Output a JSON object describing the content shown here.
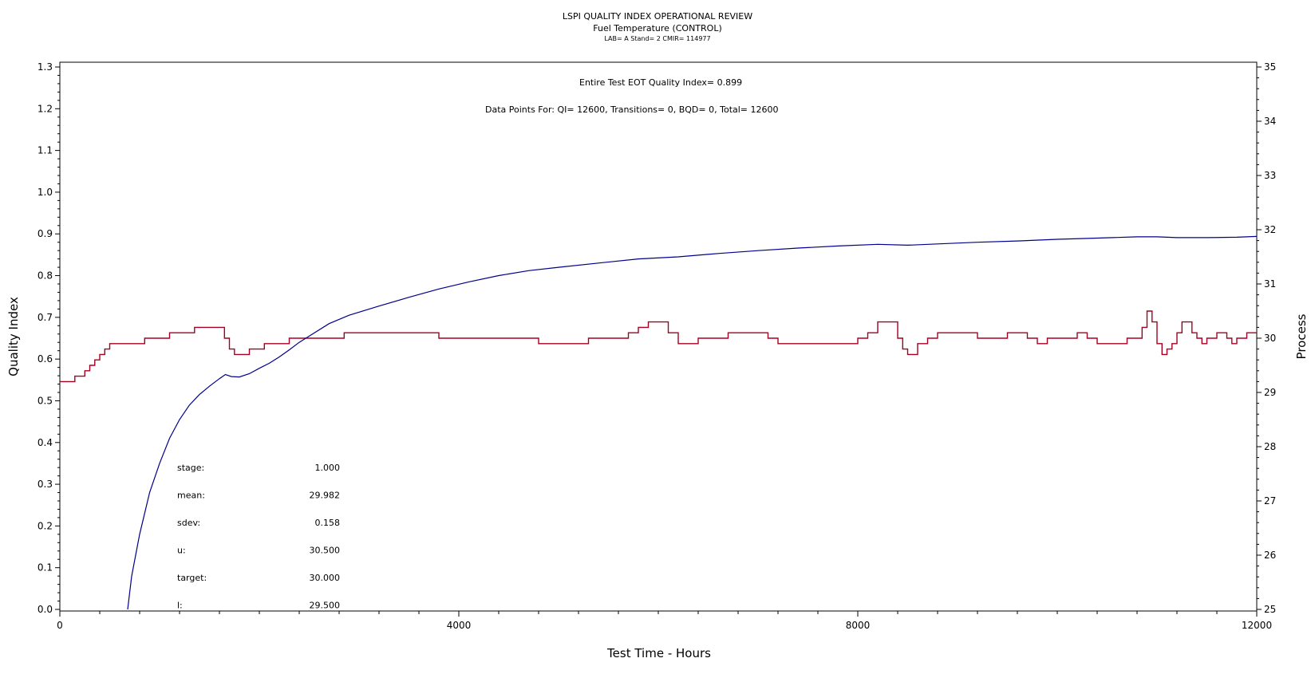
{
  "chart_data": {
    "type": "line",
    "title": "LSPI QUALITY INDEX OPERATIONAL REVIEW",
    "subtitle": "Fuel Temperature (CONTROL)",
    "subsubtitle": "LAB= A Stand= 2 CMIR= 114977",
    "xlabel": "Test Time - Hours",
    "ylabel_left": "Quality Index",
    "ylabel_right": "Process",
    "xlim": [
      0,
      12000
    ],
    "ylim_left": [
      0.0,
      1.3
    ],
    "ylim_right": [
      25,
      35
    ],
    "x_ticks": [
      0,
      4000,
      8000,
      12000
    ],
    "y_left_ticks": [
      0.0,
      0.1,
      0.2,
      0.3,
      0.4,
      0.5,
      0.6,
      0.7,
      0.8,
      0.9,
      1.0,
      1.1,
      1.2,
      1.3
    ],
    "y_left_tick_labels": [
      "0.0",
      "0.1",
      "0.2",
      "0.3",
      "0.4",
      "0.5",
      "0.6",
      "0.7",
      "0.8",
      "0.9",
      "1.0",
      "1.1",
      "1.2",
      "1.3"
    ],
    "y_right_ticks": [
      25,
      26,
      27,
      28,
      29,
      30,
      31,
      32,
      33,
      34,
      35
    ],
    "annotations": {
      "eot": "Entire Test EOT Quality Index=   0.899",
      "points": "Data Points For: QI=  12600, Transitions=      0, BQD=      0, Total=  12600"
    },
    "stats": [
      {
        "label": "stage:",
        "value": "1.000"
      },
      {
        "label": "mean:",
        "value": "29.982"
      },
      {
        "label": "sdev:",
        "value": "0.158"
      },
      {
        "label": "u:",
        "value": "30.500"
      },
      {
        "label": "target:",
        "value": "30.000"
      },
      {
        "label": "l:",
        "value": "29.500"
      }
    ],
    "grid": false,
    "series": [
      {
        "axis": "left",
        "color": "#00008b",
        "points": [
          [
            680,
            0.0
          ],
          [
            720,
            0.08
          ],
          [
            800,
            0.18
          ],
          [
            900,
            0.28
          ],
          [
            1000,
            0.35
          ],
          [
            1100,
            0.41
          ],
          [
            1200,
            0.455
          ],
          [
            1300,
            0.49
          ],
          [
            1400,
            0.515
          ],
          [
            1500,
            0.535
          ],
          [
            1600,
            0.553
          ],
          [
            1660,
            0.563
          ],
          [
            1720,
            0.558
          ],
          [
            1800,
            0.557
          ],
          [
            1900,
            0.565
          ],
          [
            2000,
            0.578
          ],
          [
            2100,
            0.59
          ],
          [
            2200,
            0.605
          ],
          [
            2300,
            0.622
          ],
          [
            2400,
            0.64
          ],
          [
            2500,
            0.655
          ],
          [
            2700,
            0.685
          ],
          [
            2900,
            0.705
          ],
          [
            3200,
            0.727
          ],
          [
            3500,
            0.748
          ],
          [
            3800,
            0.768
          ],
          [
            4100,
            0.785
          ],
          [
            4400,
            0.8
          ],
          [
            4700,
            0.812
          ],
          [
            5000,
            0.82
          ],
          [
            5400,
            0.83
          ],
          [
            5800,
            0.84
          ],
          [
            6200,
            0.845
          ],
          [
            6600,
            0.853
          ],
          [
            7000,
            0.86
          ],
          [
            7400,
            0.866
          ],
          [
            7800,
            0.871
          ],
          [
            8200,
            0.875
          ],
          [
            8500,
            0.873
          ],
          [
            8800,
            0.876
          ],
          [
            9200,
            0.88
          ],
          [
            9600,
            0.883
          ],
          [
            10000,
            0.887
          ],
          [
            10400,
            0.89
          ],
          [
            10800,
            0.893
          ],
          [
            11000,
            0.893
          ],
          [
            11200,
            0.891
          ],
          [
            11500,
            0.891
          ],
          [
            11800,
            0.892
          ],
          [
            12000,
            0.894
          ]
        ]
      },
      {
        "axis": "right",
        "color": "#a50021",
        "points": [
          [
            0,
            29.2
          ],
          [
            100,
            29.2
          ],
          [
            150,
            29.3
          ],
          [
            200,
            29.3
          ],
          [
            250,
            29.4
          ],
          [
            300,
            29.5
          ],
          [
            350,
            29.6
          ],
          [
            400,
            29.7
          ],
          [
            450,
            29.8
          ],
          [
            500,
            29.9
          ],
          [
            550,
            29.9
          ],
          [
            600,
            29.9
          ],
          [
            700,
            29.9
          ],
          [
            800,
            29.9
          ],
          [
            850,
            30.0
          ],
          [
            1000,
            30.0
          ],
          [
            1100,
            30.1
          ],
          [
            1300,
            30.1
          ],
          [
            1350,
            30.2
          ],
          [
            1600,
            30.2
          ],
          [
            1650,
            30.0
          ],
          [
            1700,
            29.8
          ],
          [
            1750,
            29.7
          ],
          [
            1850,
            29.7
          ],
          [
            1900,
            29.8
          ],
          [
            2000,
            29.8
          ],
          [
            2050,
            29.9
          ],
          [
            2200,
            29.9
          ],
          [
            2300,
            30.0
          ],
          [
            2800,
            30.0
          ],
          [
            2850,
            30.1
          ],
          [
            3700,
            30.1
          ],
          [
            3800,
            30.0
          ],
          [
            4300,
            30.0
          ],
          [
            4500,
            30.0
          ],
          [
            4700,
            30.0
          ],
          [
            4800,
            29.9
          ],
          [
            4900,
            29.9
          ],
          [
            5000,
            29.9
          ],
          [
            5200,
            29.9
          ],
          [
            5300,
            30.0
          ],
          [
            5500,
            30.0
          ],
          [
            5600,
            30.0
          ],
          [
            5700,
            30.1
          ],
          [
            5800,
            30.2
          ],
          [
            5900,
            30.3
          ],
          [
            6000,
            30.3
          ],
          [
            6100,
            30.1
          ],
          [
            6200,
            29.9
          ],
          [
            6300,
            29.9
          ],
          [
            6400,
            30.0
          ],
          [
            6600,
            30.0
          ],
          [
            6700,
            30.1
          ],
          [
            6900,
            30.1
          ],
          [
            7000,
            30.1
          ],
          [
            7100,
            30.0
          ],
          [
            7200,
            29.9
          ],
          [
            7300,
            29.9
          ],
          [
            7500,
            29.9
          ],
          [
            7800,
            29.9
          ],
          [
            7900,
            29.9
          ],
          [
            8000,
            30.0
          ],
          [
            8100,
            30.1
          ],
          [
            8200,
            30.3
          ],
          [
            8300,
            30.3
          ],
          [
            8400,
            30.0
          ],
          [
            8450,
            29.8
          ],
          [
            8500,
            29.7
          ],
          [
            8600,
            29.9
          ],
          [
            8700,
            30.0
          ],
          [
            8800,
            30.1
          ],
          [
            9000,
            30.1
          ],
          [
            9100,
            30.1
          ],
          [
            9200,
            30.0
          ],
          [
            9300,
            30.0
          ],
          [
            9400,
            30.0
          ],
          [
            9500,
            30.1
          ],
          [
            9600,
            30.1
          ],
          [
            9700,
            30.0
          ],
          [
            9800,
            29.9
          ],
          [
            9900,
            30.0
          ],
          [
            10000,
            30.0
          ],
          [
            10100,
            30.0
          ],
          [
            10200,
            30.1
          ],
          [
            10300,
            30.0
          ],
          [
            10400,
            29.9
          ],
          [
            10600,
            29.9
          ],
          [
            10700,
            30.0
          ],
          [
            10800,
            30.0
          ],
          [
            10850,
            30.2
          ],
          [
            10900,
            30.5
          ],
          [
            10950,
            30.3
          ],
          [
            11000,
            29.9
          ],
          [
            11050,
            29.7
          ],
          [
            11100,
            29.8
          ],
          [
            11150,
            29.9
          ],
          [
            11200,
            30.1
          ],
          [
            11250,
            30.3
          ],
          [
            11300,
            30.3
          ],
          [
            11350,
            30.1
          ],
          [
            11400,
            30.0
          ],
          [
            11450,
            29.9
          ],
          [
            11500,
            30.0
          ],
          [
            11600,
            30.1
          ],
          [
            11700,
            30.0
          ],
          [
            11750,
            29.9
          ],
          [
            11800,
            30.0
          ],
          [
            11900,
            30.1
          ],
          [
            12000,
            30.1
          ]
        ]
      }
    ]
  }
}
